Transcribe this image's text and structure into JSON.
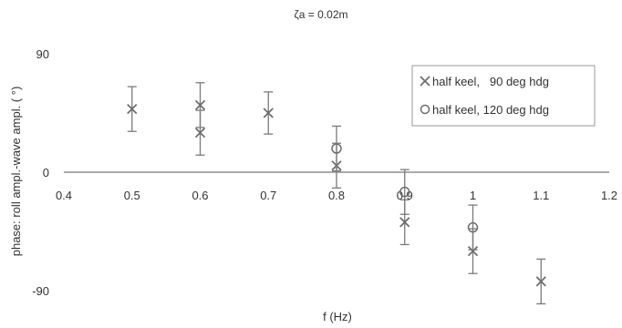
{
  "chart_data": {
    "type": "scatter",
    "title": "ζa = 0.02m",
    "xlabel": "f (Hz)",
    "ylabel": "phase: roll ampl.-wave ampl. ( °)",
    "xlim": [
      0.4,
      1.2
    ],
    "ylim": [
      -90,
      90
    ],
    "xticks": [
      "0.4",
      "0.5",
      "0.6",
      "0.7",
      "0.8",
      "0.9",
      "1",
      "1.1",
      "1.2"
    ],
    "yticks": [
      "90",
      "0",
      "-90"
    ],
    "grid": false,
    "legend_position": "top-right",
    "series": [
      {
        "name": "half keel,   90 deg hdg",
        "marker": "x",
        "color": "#6e6e6e",
        "points": [
          {
            "x": 0.5,
            "y": 48,
            "err": 17
          },
          {
            "x": 0.6,
            "y": 51,
            "err": 17
          },
          {
            "x": 0.6,
            "y": 30,
            "err": 17
          },
          {
            "x": 0.7,
            "y": 45,
            "err": 16
          },
          {
            "x": 0.8,
            "y": 5,
            "err": 17
          },
          {
            "x": 0.9,
            "y": -38,
            "err": 17
          },
          {
            "x": 1.0,
            "y": -60,
            "err": 17
          },
          {
            "x": 1.1,
            "y": -83,
            "err": 17
          }
        ]
      },
      {
        "name": "half keel, 120 deg hdg",
        "marker": "o",
        "color": "#6e6e6e",
        "points": [
          {
            "x": 0.8,
            "y": 18,
            "err": 17
          },
          {
            "x": 0.9,
            "y": -15,
            "err": 17
          },
          {
            "x": 1.0,
            "y": -42,
            "err": 17
          }
        ]
      }
    ]
  }
}
